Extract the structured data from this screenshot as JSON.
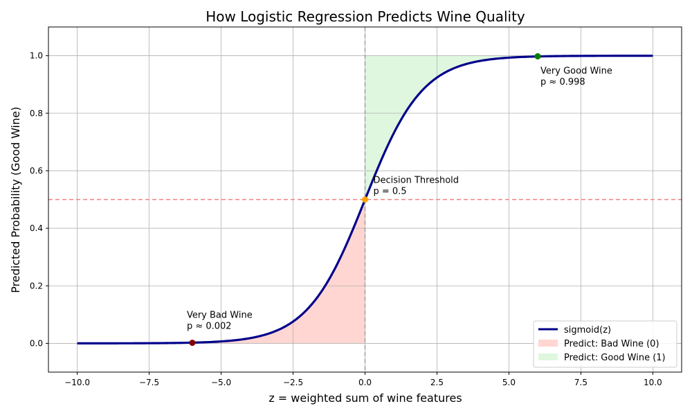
{
  "chart_data": {
    "type": "line",
    "title": "How Logistic Regression Predicts Wine Quality",
    "xlabel": "z = weighted sum of wine features",
    "ylabel": "Predicted Probability (Good Wine)",
    "xlim": [
      -11,
      11
    ],
    "ylim": [
      -0.1,
      1.1
    ],
    "xticks": [
      -10.0,
      -7.5,
      -5.0,
      -2.5,
      0.0,
      2.5,
      5.0,
      7.5,
      10.0
    ],
    "xtick_labels": [
      "−10.0",
      "−7.5",
      "−5.0",
      "−2.5",
      "0.0",
      "2.5",
      "5.0",
      "7.5",
      "10.0"
    ],
    "yticks": [
      0.0,
      0.2,
      0.4,
      0.6,
      0.8,
      1.0
    ],
    "ytick_labels": [
      "0.0",
      "0.2",
      "0.4",
      "0.6",
      "0.8",
      "1.0"
    ],
    "grid": true,
    "series": [
      {
        "name": "sigmoid(z)",
        "function": "sigmoid",
        "x_range": [
          -10,
          10
        ],
        "color": "#00008b"
      }
    ],
    "fills": [
      {
        "name": "Predict: Bad Wine (0)",
        "x_range": [
          -10,
          0
        ],
        "color": "#ffd6d1",
        "to": "curve"
      },
      {
        "name": "Predict: Good Wine (1)",
        "x_range": [
          0,
          10
        ],
        "color": "#dff7df",
        "from": "curve",
        "to": 1.0
      }
    ],
    "reference_lines": [
      {
        "orientation": "horizontal",
        "value": 0.5,
        "color": "#f08080"
      },
      {
        "orientation": "vertical",
        "value": 0.0,
        "color": "#a0a0a0"
      }
    ],
    "points": [
      {
        "x": -6,
        "y": 0.002,
        "color": "#800000",
        "label_line1": "Very Bad Wine",
        "label_line2": "p ≈ 0.002"
      },
      {
        "x": 0,
        "y": 0.5,
        "color": "#ffa500",
        "label_line1": "Decision Threshold",
        "label_line2": "p = 0.5"
      },
      {
        "x": 6,
        "y": 0.998,
        "color": "#008000",
        "label_line1": "Very Good Wine",
        "label_line2": "p ≈ 0.998"
      }
    ],
    "legend": {
      "placement": "bottom-right",
      "entries": [
        {
          "label": "sigmoid(z)",
          "kind": "line",
          "color": "#00008b"
        },
        {
          "label": "Predict: Bad Wine (0)",
          "kind": "patch",
          "color": "#ffd6d1"
        },
        {
          "label": "Predict: Good Wine (1)",
          "kind": "patch",
          "color": "#dff7df"
        }
      ]
    }
  }
}
